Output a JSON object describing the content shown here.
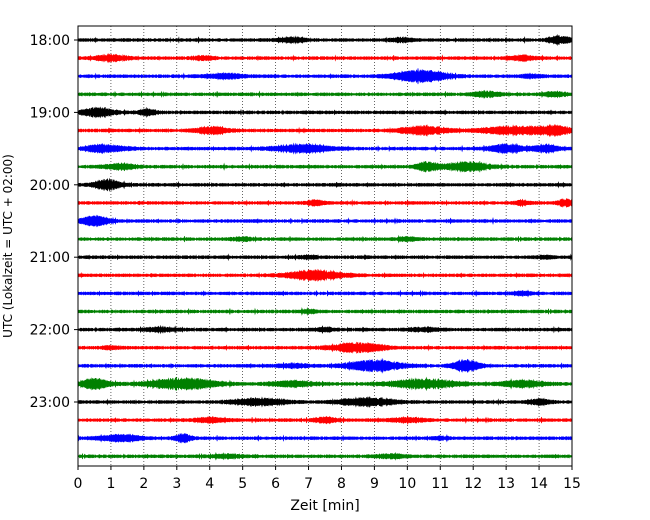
{
  "chart_data": {
    "type": "line",
    "xlabel": "Zeit  [min]",
    "ylabel": "UTC (Lokalzeit = UTC + 02:00)",
    "xlim": [
      0,
      15
    ],
    "x_ticks": [
      0,
      1,
      2,
      3,
      4,
      5,
      6,
      7,
      8,
      9,
      10,
      11,
      12,
      13,
      14,
      15
    ],
    "y_tick_labels": [
      "18:00",
      "19:00",
      "20:00",
      "21:00",
      "22:00",
      "23:00"
    ],
    "grid": "vertical dotted",
    "colors": [
      "#000000",
      "#ff0000",
      "#0000ff",
      "#008000"
    ],
    "traces": [
      {
        "start": "18:00",
        "color": "#000000",
        "events": [
          [
            6.5,
            0.5,
            1.0
          ],
          [
            9.8,
            0.4,
            0.8
          ],
          [
            14.6,
            0.4,
            1.6
          ]
        ]
      },
      {
        "start": "18:15",
        "color": "#ff0000",
        "events": [
          [
            1.0,
            0.6,
            1.3
          ],
          [
            3.8,
            0.4,
            0.8
          ],
          [
            13.5,
            0.5,
            1.0
          ]
        ]
      },
      {
        "start": "18:30",
        "color": "#0000ff",
        "events": [
          [
            4.5,
            0.8,
            1.0
          ],
          [
            10.4,
            1.0,
            2.5
          ],
          [
            13.8,
            0.4,
            0.6
          ]
        ]
      },
      {
        "start": "18:45",
        "color": "#008000",
        "events": [
          [
            12.4,
            0.5,
            1.2
          ],
          [
            14.5,
            0.4,
            1.0
          ]
        ]
      },
      {
        "start": "19:00",
        "color": "#000000",
        "events": [
          [
            0.6,
            0.6,
            2.0
          ],
          [
            2.1,
            0.3,
            1.5
          ]
        ]
      },
      {
        "start": "19:15",
        "color": "#ff0000",
        "events": [
          [
            4.1,
            0.6,
            1.6
          ],
          [
            10.5,
            0.8,
            2.0
          ],
          [
            13.2,
            1.2,
            1.8
          ],
          [
            14.5,
            0.6,
            1.8
          ]
        ]
      },
      {
        "start": "19:30",
        "color": "#0000ff",
        "events": [
          [
            0.8,
            0.8,
            1.6
          ],
          [
            6.8,
            1.0,
            1.8
          ],
          [
            13.0,
            0.6,
            1.8
          ],
          [
            14.2,
            0.5,
            1.6
          ]
        ]
      },
      {
        "start": "19:45",
        "color": "#008000",
        "events": [
          [
            1.3,
            0.6,
            1.3
          ],
          [
            10.6,
            0.4,
            2.0
          ],
          [
            11.8,
            0.8,
            2.0
          ]
        ]
      },
      {
        "start": "20:00",
        "color": "#000000",
        "events": [
          [
            0.9,
            0.5,
            2.2
          ]
        ]
      },
      {
        "start": "20:15",
        "color": "#ff0000",
        "events": [
          [
            7.2,
            0.3,
            1.2
          ],
          [
            13.5,
            0.3,
            1.0
          ],
          [
            14.8,
            0.3,
            1.4
          ]
        ]
      },
      {
        "start": "20:30",
        "color": "#0000ff",
        "events": [
          [
            0.5,
            0.5,
            2.2
          ]
        ]
      },
      {
        "start": "20:45",
        "color": "#008000",
        "events": [
          [
            5.0,
            0.4,
            0.7
          ],
          [
            10.0,
            0.4,
            0.7
          ]
        ]
      },
      {
        "start": "21:00",
        "color": "#000000",
        "events": [
          [
            7.0,
            0.4,
            0.6
          ],
          [
            14.2,
            0.3,
            0.6
          ]
        ]
      },
      {
        "start": "21:15",
        "color": "#ff0000",
        "events": [
          [
            7.2,
            1.0,
            2.2
          ]
        ]
      },
      {
        "start": "21:30",
        "color": "#0000ff",
        "events": [
          [
            13.5,
            0.4,
            0.7
          ]
        ]
      },
      {
        "start": "21:45",
        "color": "#008000",
        "events": [
          [
            7.0,
            0.3,
            0.6
          ]
        ]
      },
      {
        "start": "22:00",
        "color": "#000000",
        "events": [
          [
            2.5,
            0.6,
            0.8
          ],
          [
            7.5,
            0.4,
            0.8
          ],
          [
            10.5,
            0.6,
            0.8
          ]
        ]
      },
      {
        "start": "22:15",
        "color": "#ff0000",
        "events": [
          [
            1.0,
            0.3,
            0.7
          ],
          [
            8.5,
            1.0,
            2.0
          ]
        ]
      },
      {
        "start": "22:30",
        "color": "#0000ff",
        "events": [
          [
            6.5,
            0.6,
            0.8
          ],
          [
            9.0,
            1.0,
            2.4
          ],
          [
            11.8,
            0.5,
            2.6
          ]
        ]
      },
      {
        "start": "22:45",
        "color": "#008000",
        "events": [
          [
            0.5,
            0.6,
            2.2
          ],
          [
            3.2,
            1.2,
            2.6
          ],
          [
            6.5,
            0.8,
            1.2
          ],
          [
            10.5,
            1.2,
            2.0
          ],
          [
            13.5,
            0.8,
            1.5
          ]
        ]
      },
      {
        "start": "23:00",
        "color": "#000000",
        "events": [
          [
            5.5,
            1.0,
            1.5
          ],
          [
            8.8,
            1.0,
            1.8
          ],
          [
            14.0,
            0.4,
            1.2
          ]
        ]
      },
      {
        "start": "23:15",
        "color": "#ff0000",
        "events": [
          [
            4.0,
            0.6,
            1.0
          ],
          [
            7.5,
            0.4,
            1.2
          ],
          [
            10.0,
            0.6,
            1.0
          ]
        ]
      },
      {
        "start": "23:30",
        "color": "#0000ff",
        "events": [
          [
            1.3,
            0.8,
            1.4
          ],
          [
            3.2,
            0.3,
            2.0
          ],
          [
            11.0,
            0.3,
            0.6
          ]
        ]
      },
      {
        "start": "23:45",
        "color": "#008000",
        "events": [
          [
            4.5,
            0.6,
            0.7
          ],
          [
            9.5,
            0.6,
            0.7
          ]
        ]
      }
    ]
  }
}
